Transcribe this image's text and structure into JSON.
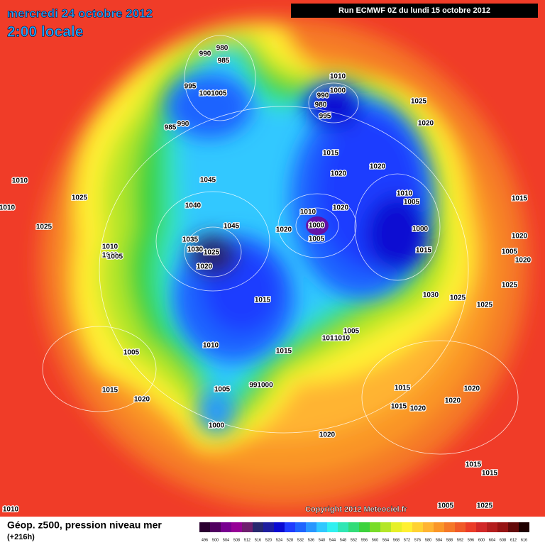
{
  "header": {
    "date": "mercredi 24 octobre 2012",
    "time": "2:00 locale",
    "run": "Run ECMWF 0Z du lundi 15 octobre 2012"
  },
  "map": {
    "copyright": "Copyright 2012 Meteociel.fr",
    "labels": [
      "980",
      "990",
      "985",
      "995",
      "1001005",
      "990",
      "985",
      "1010",
      "1000",
      "990",
      "980",
      "995",
      "1025",
      "1020",
      "1015",
      "1020",
      "1020",
      "1010",
      "1005",
      "1020",
      "1010",
      "1000",
      "1005",
      "1020",
      "1000",
      "1015",
      "1015",
      "1020",
      "1005",
      "1020",
      "1025",
      "1030",
      "1025",
      "1025",
      "1025",
      "1010",
      "1010",
      "1025",
      "1010",
      "1010",
      "1005",
      "1045",
      "1040",
      "1045",
      "1035",
      "1030",
      "1025",
      "1020",
      "1015",
      "1010",
      "1005",
      "1015",
      "1005",
      "1015",
      "1010",
      "1005",
      "991000",
      "1015",
      "1020",
      "1000",
      "1015",
      "1015",
      "1020",
      "1020",
      "1020",
      "1020",
      "1015",
      "1015",
      "1005",
      "1025",
      "1010"
    ]
  },
  "footer": {
    "title": "Géop. z500, pression niveau mer",
    "lead": "(+216h)"
  },
  "legend": {
    "levels": [
      496,
      500,
      504,
      508,
      512,
      516,
      520,
      524,
      528,
      532,
      536,
      540,
      544,
      548,
      552,
      556,
      560,
      564,
      568,
      572,
      576,
      580,
      584,
      588,
      592,
      596,
      600,
      604,
      608,
      612,
      616
    ],
    "colors": [
      "#2a0030",
      "#500060",
      "#780090",
      "#960096",
      "#6e1e6e",
      "#28286e",
      "#1e1ea0",
      "#0a0ad2",
      "#1e3cff",
      "#1e64ff",
      "#2896ff",
      "#30c8ff",
      "#30f0f0",
      "#30e6b4",
      "#32dc78",
      "#3cd23c",
      "#78dc28",
      "#b4e628",
      "#e6f028",
      "#fff032",
      "#ffd232",
      "#ffb432",
      "#fa9628",
      "#f57828",
      "#f05a28",
      "#eb3c28",
      "#d22828",
      "#b41e1e",
      "#961414",
      "#640a0a",
      "#1e0000"
    ]
  }
}
